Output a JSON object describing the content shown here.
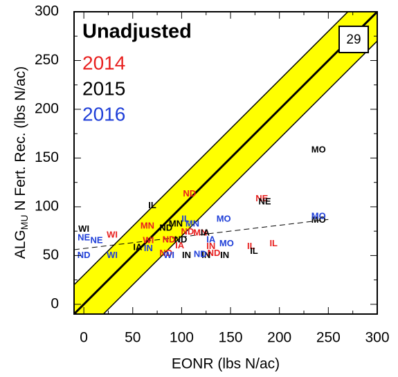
{
  "chart_data": {
    "type": "scatter",
    "title": "Unadjusted",
    "panel_label": "29",
    "x_label": "EONR (lbs N/ac)",
    "y_label": {
      "main": "ALG",
      "sub": "MU",
      "rest": " N Fert. Rec. (lbs N/ac)"
    },
    "xlim": [
      -10,
      300
    ],
    "ylim": [
      -10,
      300
    ],
    "xticks": [
      0,
      50,
      100,
      150,
      200,
      250,
      300
    ],
    "yticks": [
      0,
      50,
      100,
      150,
      200,
      250,
      300
    ],
    "x_minor_ticks": [
      25,
      75,
      125,
      175,
      225,
      275
    ],
    "y_minor_ticks": [
      25,
      75,
      125,
      175,
      225,
      275
    ],
    "one_to_one_band": 30,
    "band_color": "#ffff00",
    "trend_line": {
      "x": [
        -10,
        250
      ],
      "y": [
        56,
        87
      ]
    },
    "series": [
      {
        "name": "2014",
        "color": "#e8201f",
        "labels": [
          "ND",
          "NE",
          "MN",
          "WI",
          "WI",
          "ND",
          "MN",
          "ND",
          "IA",
          "ND",
          "IN",
          "ND",
          "IL",
          "IL"
        ],
        "x": [
          108,
          182,
          65,
          29,
          66,
          106,
          119,
          87,
          98,
          84,
          130,
          133,
          171,
          194
        ],
        "y": [
          113,
          108,
          80,
          71,
          65,
          74,
          73,
          66,
          60,
          52,
          59,
          52,
          59,
          62
        ]
      },
      {
        "name": "2015",
        "color": "#000000",
        "labels": [
          "MO",
          "IL",
          "NE",
          "WI",
          "MN",
          "ND",
          "IA",
          "ND",
          "IA",
          "IN",
          "IN",
          "IN",
          "IL",
          "MO"
        ],
        "x": [
          240,
          70,
          185,
          0,
          94,
          84,
          124,
          99,
          55,
          105,
          125,
          144,
          174,
          240
        ],
        "y": [
          158,
          101,
          105,
          77,
          82,
          78,
          73,
          66,
          58,
          50,
          50,
          50,
          54,
          86
        ]
      },
      {
        "name": "2016",
        "color": "#1f3fd8",
        "labels": [
          "NE",
          "NE",
          "ND",
          "WI",
          "WI",
          "IL",
          "MN",
          "MO",
          "IA",
          "MO",
          "ND",
          "MO",
          "IN"
        ],
        "x": [
          0,
          13,
          0,
          29,
          87,
          104,
          111,
          143,
          130,
          146,
          119,
          240,
          66
        ],
        "y": [
          68,
          65,
          50,
          50,
          50,
          87,
          82,
          87,
          66,
          62,
          51,
          90,
          57
        ]
      }
    ]
  }
}
